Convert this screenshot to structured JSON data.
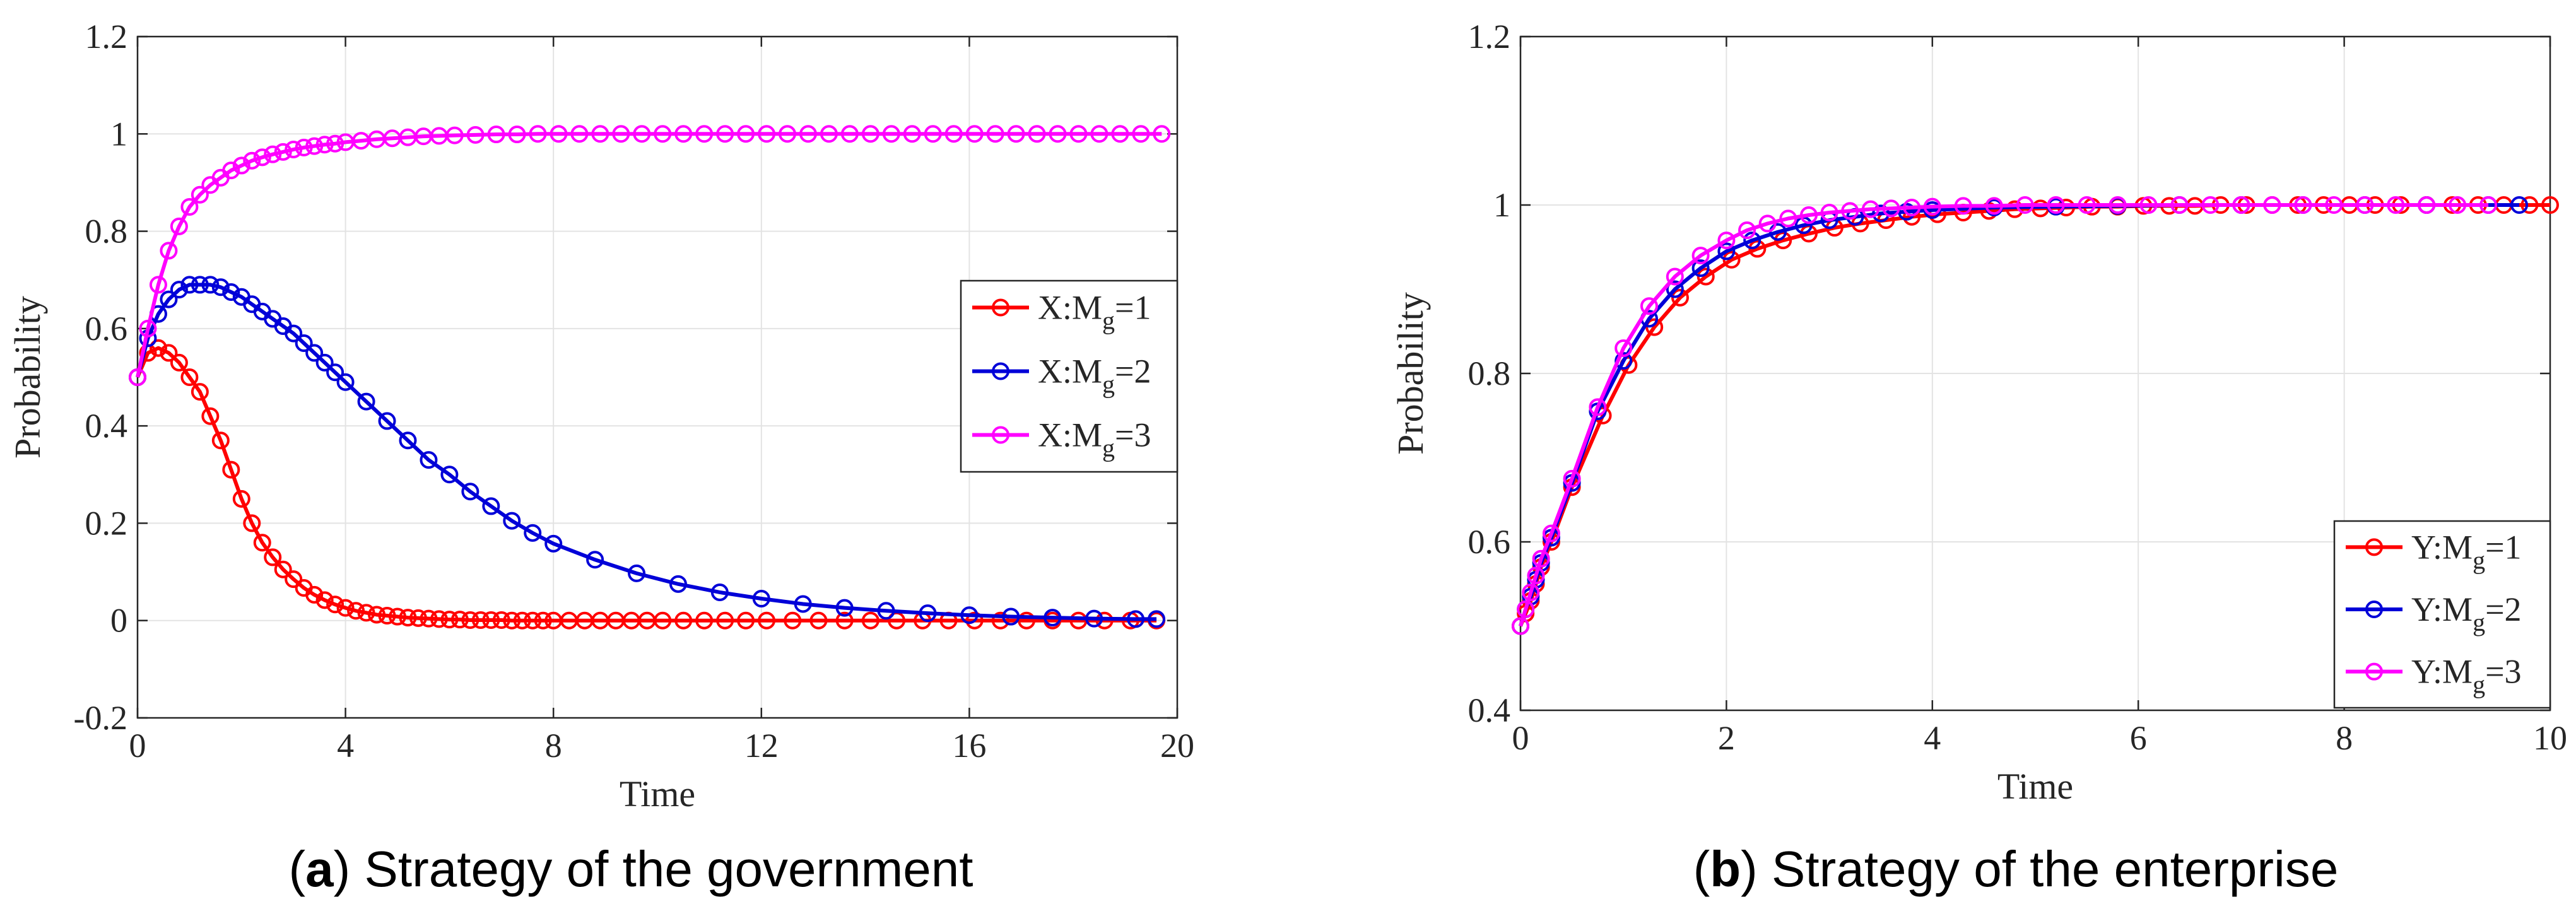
{
  "chart_data": [
    {
      "type": "line",
      "panel": "a",
      "caption_letter": "a",
      "caption_rest": " Strategy of the government",
      "title": "",
      "xlabel": "Time",
      "ylabel": "Probability",
      "xlim": [
        0,
        20
      ],
      "ylim": [
        -0.2,
        1.2
      ],
      "xticks": [
        0,
        4,
        8,
        12,
        16,
        20
      ],
      "yticks": [
        -0.2,
        0,
        0.2,
        0.4,
        0.6,
        0.8,
        1.0
      ],
      "xtick_labels": [
        "0",
        "4",
        "8",
        "12",
        "16",
        "20"
      ],
      "ytick_labels": [
        "-0.2",
        "0",
        "0.2",
        "0.4",
        "0.6",
        "0.8",
        "1",
        "1.2"
      ],
      "yticks_all": [
        -0.2,
        0,
        0.2,
        0.4,
        0.6,
        0.8,
        1.0,
        1.2
      ],
      "grid": true,
      "legend_position": "right-middle",
      "series": [
        {
          "name": "X:Mg=1",
          "legend_prefix": "X:M",
          "legend_sub": "g",
          "legend_suffix": "=1",
          "color": "#ff0000",
          "x": [
            0,
            0.2,
            0.4,
            0.6,
            0.8,
            1.0,
            1.2,
            1.4,
            1.6,
            1.8,
            2.0,
            2.2,
            2.4,
            2.6,
            2.8,
            3.0,
            3.2,
            3.4,
            3.6,
            3.8,
            4.0,
            4.2,
            4.4,
            4.6,
            4.8,
            5.0,
            5.2,
            5.4,
            5.6,
            5.8,
            6.0,
            6.2,
            6.4,
            6.6,
            6.8,
            7.0,
            7.2,
            7.4,
            7.6,
            7.8,
            8.0,
            8.3,
            8.6,
            8.9,
            9.2,
            9.5,
            9.8,
            10.1,
            10.5,
            10.9,
            11.3,
            11.7,
            12.1,
            12.6,
            13.1,
            13.6,
            14.1,
            14.6,
            15.1,
            15.6,
            16.1,
            16.6,
            17.1,
            17.6,
            18.1,
            18.6,
            19.1,
            19.6
          ],
          "y": [
            0.5,
            0.55,
            0.56,
            0.55,
            0.53,
            0.5,
            0.47,
            0.42,
            0.37,
            0.31,
            0.25,
            0.2,
            0.16,
            0.13,
            0.105,
            0.085,
            0.067,
            0.053,
            0.042,
            0.033,
            0.026,
            0.02,
            0.016,
            0.012,
            0.01,
            0.008,
            0.006,
            0.005,
            0.004,
            0.003,
            0.002,
            0.002,
            0.001,
            0.001,
            0.001,
            0.001,
            0,
            0,
            0,
            0,
            0,
            0,
            0,
            0,
            0,
            0,
            0,
            0,
            0,
            0,
            0,
            0,
            0,
            0,
            0,
            0,
            0,
            0,
            0,
            0,
            0,
            0,
            0,
            0,
            0,
            0,
            0,
            0
          ]
        },
        {
          "name": "X:Mg=2",
          "legend_prefix": "X:M",
          "legend_sub": "g",
          "legend_suffix": "=2",
          "color": "#0000d8",
          "x": [
            0,
            0.2,
            0.4,
            0.6,
            0.8,
            1.0,
            1.2,
            1.4,
            1.6,
            1.8,
            2.0,
            2.2,
            2.4,
            2.6,
            2.8,
            3.0,
            3.2,
            3.4,
            3.6,
            3.8,
            4.0,
            4.4,
            4.8,
            5.2,
            5.6,
            6.0,
            6.4,
            6.8,
            7.2,
            7.6,
            8.0,
            8.8,
            9.6,
            10.4,
            11.2,
            12.0,
            12.8,
            13.6,
            14.4,
            15.2,
            16.0,
            16.8,
            17.6,
            18.4,
            19.2,
            19.6
          ],
          "y": [
            0.5,
            0.58,
            0.63,
            0.66,
            0.68,
            0.69,
            0.69,
            0.69,
            0.685,
            0.675,
            0.665,
            0.65,
            0.635,
            0.62,
            0.605,
            0.59,
            0.57,
            0.55,
            0.53,
            0.51,
            0.49,
            0.45,
            0.41,
            0.37,
            0.33,
            0.3,
            0.265,
            0.235,
            0.205,
            0.18,
            0.158,
            0.125,
            0.097,
            0.075,
            0.058,
            0.045,
            0.034,
            0.026,
            0.02,
            0.015,
            0.011,
            0.008,
            0.006,
            0.004,
            0.003,
            0.003
          ]
        },
        {
          "name": "X:Mg=3",
          "legend_prefix": "X:M",
          "legend_sub": "g",
          "legend_suffix": "=3",
          "color": "#ff00ff",
          "x": [
            0,
            0.2,
            0.4,
            0.6,
            0.8,
            1.0,
            1.2,
            1.4,
            1.6,
            1.8,
            2.0,
            2.2,
            2.4,
            2.6,
            2.8,
            3.0,
            3.2,
            3.4,
            3.6,
            3.8,
            4.0,
            4.3,
            4.6,
            4.9,
            5.2,
            5.5,
            5.8,
            6.1,
            6.5,
            6.9,
            7.3,
            7.7,
            8.1,
            8.5,
            8.9,
            9.3,
            9.7,
            10.1,
            10.5,
            10.9,
            11.3,
            11.7,
            12.1,
            12.5,
            12.9,
            13.3,
            13.7,
            14.1,
            14.5,
            14.9,
            15.3,
            15.7,
            16.1,
            16.5,
            16.9,
            17.3,
            17.7,
            18.1,
            18.5,
            18.9,
            19.3,
            19.7
          ],
          "y": [
            0.5,
            0.6,
            0.69,
            0.76,
            0.81,
            0.85,
            0.875,
            0.895,
            0.91,
            0.925,
            0.935,
            0.945,
            0.952,
            0.958,
            0.963,
            0.968,
            0.972,
            0.975,
            0.978,
            0.98,
            0.983,
            0.986,
            0.989,
            0.991,
            0.993,
            0.995,
            0.996,
            0.997,
            0.998,
            0.999,
            0.999,
            1,
            1,
            1,
            1,
            1,
            1,
            1,
            1,
            1,
            1,
            1,
            1,
            1,
            1,
            1,
            1,
            1,
            1,
            1,
            1,
            1,
            1,
            1,
            1,
            1,
            1,
            1,
            1,
            1,
            1,
            1
          ]
        }
      ]
    },
    {
      "type": "line",
      "panel": "b",
      "caption_letter": "b",
      "caption_rest": " Strategy of the enterprise",
      "title": "",
      "xlabel": "Time",
      "ylabel": "Probability",
      "xlim": [
        0,
        10
      ],
      "ylim": [
        0.4,
        1.2
      ],
      "xticks": [
        0,
        2,
        4,
        6,
        8,
        10
      ],
      "xtick_labels": [
        "0",
        "2",
        "4",
        "6",
        "8",
        "10"
      ],
      "yticks_all": [
        0.4,
        0.6,
        0.8,
        1.0,
        1.2
      ],
      "ytick_labels": [
        "0.4",
        "0.6",
        "0.8",
        "1",
        "1.2"
      ],
      "grid": true,
      "legend_position": "bottom-right",
      "series": [
        {
          "name": "Y:Mg=1",
          "legend_prefix": "Y:M",
          "legend_sub": "g",
          "legend_suffix": "=1",
          "color": "#ff0000",
          "x": [
            0,
            0.05,
            0.1,
            0.15,
            0.2,
            0.3,
            0.5,
            0.8,
            1.05,
            1.3,
            1.55,
            1.8,
            2.05,
            2.3,
            2.55,
            2.8,
            3.05,
            3.3,
            3.55,
            3.8,
            4.05,
            4.3,
            4.55,
            4.8,
            5.05,
            5.3,
            5.55,
            5.8,
            6.05,
            6.3,
            6.55,
            6.8,
            7.05,
            7.3,
            7.55,
            7.8,
            8.05,
            8.3,
            8.55,
            8.8,
            9.05,
            9.3,
            9.55,
            9.8,
            10.0
          ],
          "y": [
            0.5,
            0.515,
            0.53,
            0.55,
            0.57,
            0.6,
            0.665,
            0.75,
            0.81,
            0.855,
            0.89,
            0.915,
            0.935,
            0.948,
            0.958,
            0.966,
            0.973,
            0.978,
            0.982,
            0.986,
            0.989,
            0.991,
            0.993,
            0.995,
            0.996,
            0.997,
            0.998,
            0.998,
            0.999,
            0.999,
            0.999,
            1,
            1,
            1,
            1,
            1,
            1,
            1,
            1,
            1,
            1,
            1,
            1,
            1,
            1
          ]
        },
        {
          "name": "Y:Mg=2",
          "legend_prefix": "Y:M",
          "legend_sub": "g",
          "legend_suffix": "=2",
          "color": "#0000d8",
          "x": [
            0,
            0.05,
            0.1,
            0.15,
            0.2,
            0.3,
            0.5,
            0.75,
            1.0,
            1.25,
            1.5,
            1.75,
            2.0,
            2.25,
            2.5,
            2.75,
            3.0,
            3.25,
            3.5,
            3.75,
            4.0,
            4.6,
            5.2,
            5.8,
            6.4,
            7.0,
            7.6,
            8.2,
            8.8,
            9.4,
            9.7
          ],
          "y": [
            0.5,
            0.52,
            0.535,
            0.555,
            0.575,
            0.605,
            0.67,
            0.755,
            0.815,
            0.865,
            0.9,
            0.925,
            0.945,
            0.958,
            0.968,
            0.976,
            0.982,
            0.986,
            0.99,
            0.992,
            0.994,
            0.997,
            0.998,
            0.999,
            1,
            1,
            1,
            1,
            1,
            1,
            1
          ]
        },
        {
          "name": "Y:Mg=3",
          "legend_prefix": "Y:M",
          "legend_sub": "g",
          "legend_suffix": "=3",
          "color": "#ff00ff",
          "x": [
            0,
            0.05,
            0.1,
            0.15,
            0.2,
            0.3,
            0.5,
            0.75,
            1.0,
            1.25,
            1.5,
            1.75,
            2.0,
            2.2,
            2.4,
            2.6,
            2.8,
            3.0,
            3.2,
            3.4,
            3.6,
            3.8,
            4.0,
            4.3,
            4.6,
            4.9,
            5.2,
            5.5,
            5.8,
            6.1,
            6.4,
            6.7,
            7.0,
            7.3,
            7.6,
            7.9,
            8.2,
            8.5,
            8.8,
            9.1,
            9.4
          ],
          "y": [
            0.5,
            0.52,
            0.54,
            0.56,
            0.58,
            0.61,
            0.675,
            0.76,
            0.83,
            0.88,
            0.915,
            0.94,
            0.958,
            0.97,
            0.978,
            0.984,
            0.988,
            0.991,
            0.993,
            0.995,
            0.996,
            0.997,
            0.998,
            0.999,
            0.999,
            1,
            1,
            1,
            1,
            1,
            1,
            1,
            1,
            1,
            1,
            1,
            1,
            1,
            1,
            1,
            1
          ]
        }
      ]
    }
  ]
}
